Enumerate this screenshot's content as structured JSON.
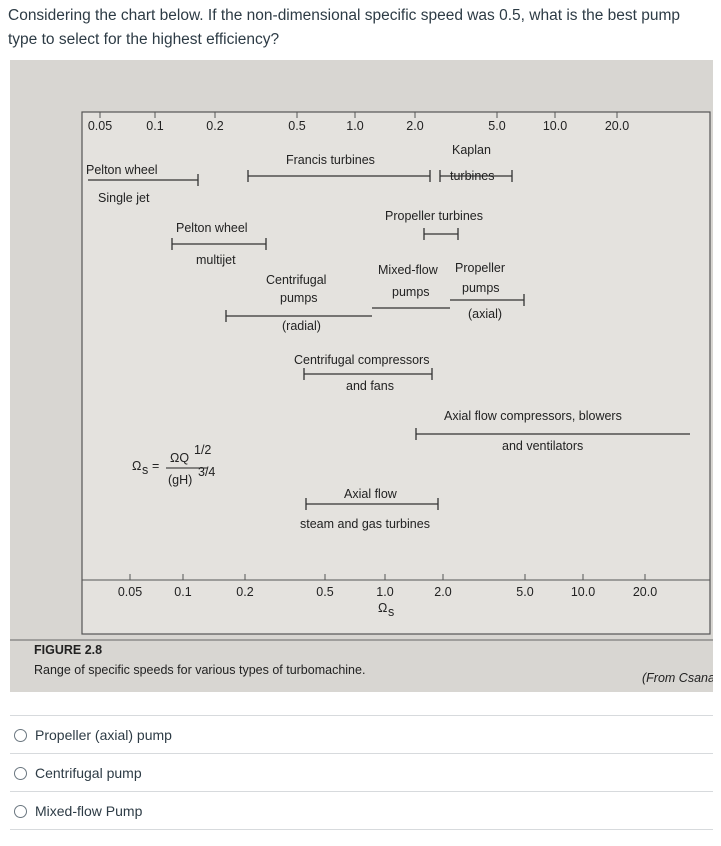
{
  "question": "Considering the chart below. If the non-dimensional specific speed was 0.5, what is the best pump type to select for the highest efficiency?",
  "figure": {
    "top_ticks": [
      "0.05",
      "0.1",
      "0.2",
      "0.5",
      "1.0",
      "2.0",
      "5.0",
      "10.0",
      "20.0"
    ],
    "bottom_ticks": [
      "0.05",
      "0.1",
      "0.2",
      "0.5",
      "1.0",
      "2.0",
      "5.0",
      "10.0",
      "20.0"
    ],
    "axis_label": {
      "symbol": "Ω",
      "subscript": "s"
    },
    "labels": [
      "Pelton wheel",
      "Single jet",
      "Francis turbines",
      "Kaplan",
      "turbines",
      "Pelton wheel",
      "multijet",
      "Propeller turbines",
      "Centrifugal",
      "pumps",
      "(radial)",
      "Mixed-flow",
      "pumps",
      "Propeller",
      "pumps",
      "(axial)",
      "Centrifugal compressors",
      "and fans",
      "Axial flow compressors, blowers",
      "and ventilators",
      "Axial flow",
      "steam and gas turbines"
    ],
    "formula": {
      "symbol": "Ω",
      "subscript": "s",
      "equals": "=",
      "numerator": "ΩQ",
      "numerator_exponent": "1/2",
      "denominator": "(gH)",
      "denominator_exponent": "3/4"
    },
    "caption_number": "FIGURE 2.8",
    "caption": "Range of specific speeds for various types of turbomachine.",
    "credit": "(From Csana"
  },
  "options": [
    "Propeller (axial) pump",
    "Centrifugal pump",
    "Mixed-flow Pump"
  ]
}
